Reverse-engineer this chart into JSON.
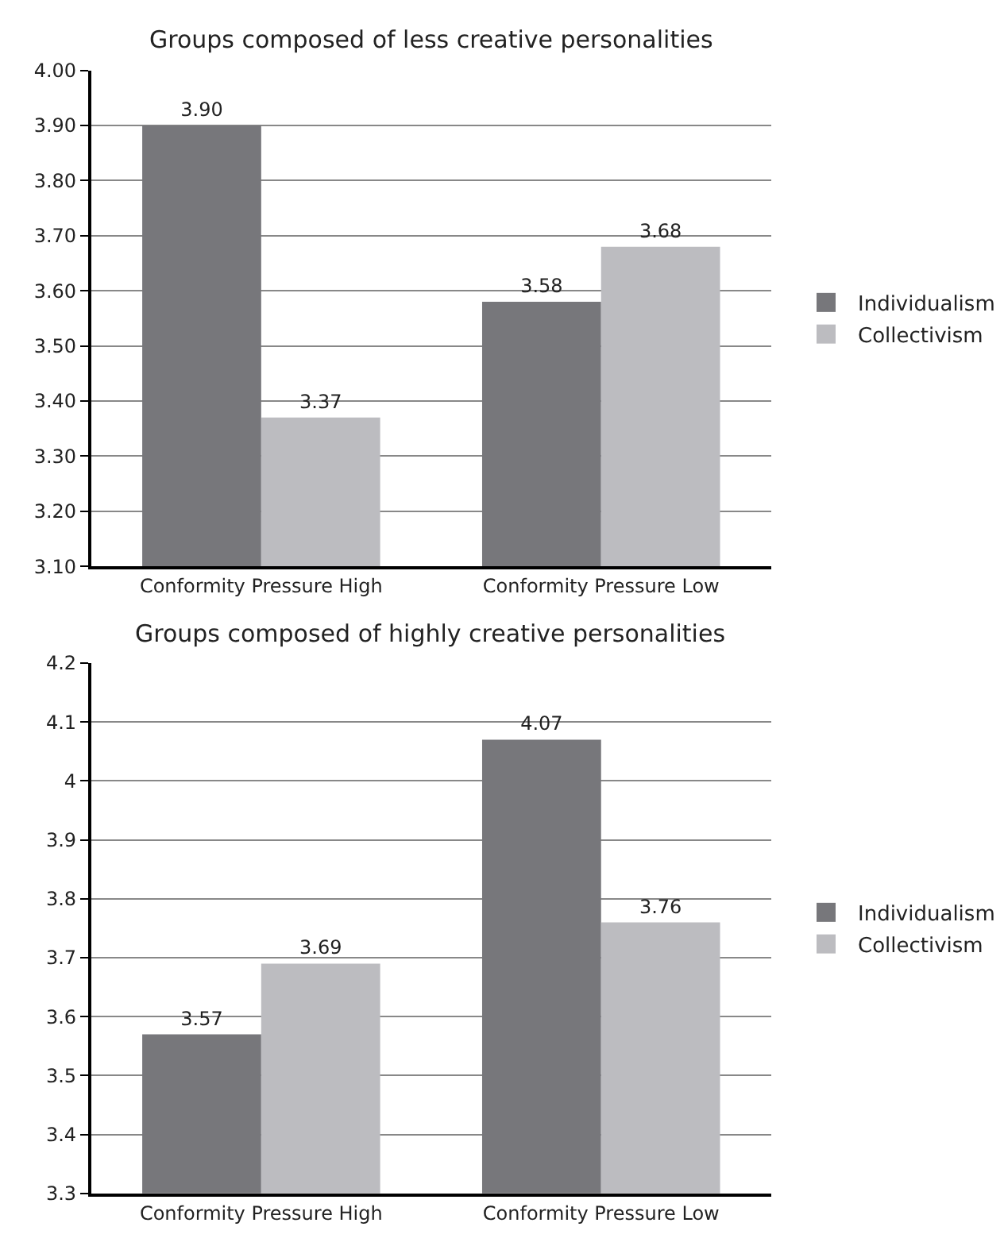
{
  "chart_data": [
    {
      "type": "bar",
      "title": "Groups composed of less creative personalities",
      "categories": [
        "Conformity Pressure High",
        "Conformity Pressure Low"
      ],
      "series": [
        {
          "name": "Individualism",
          "color": "#77777b",
          "values": [
            3.9,
            3.58
          ],
          "value_labels": [
            "3.90",
            "3.58"
          ]
        },
        {
          "name": "Collectivism",
          "color": "#bcbcc0",
          "values": [
            3.37,
            3.68
          ],
          "value_labels": [
            "3.37",
            "3.68"
          ]
        }
      ],
      "ylim": [
        3.1,
        4.0
      ],
      "yticks": [
        {
          "value": 3.1,
          "label": "3.10"
        },
        {
          "value": 3.2,
          "label": "3.20"
        },
        {
          "value": 3.3,
          "label": "3.30"
        },
        {
          "value": 3.4,
          "label": "3.40"
        },
        {
          "value": 3.5,
          "label": "3.50"
        },
        {
          "value": 3.6,
          "label": "3.60"
        },
        {
          "value": 3.7,
          "label": "3.70"
        },
        {
          "value": 3.8,
          "label": "3.80"
        },
        {
          "value": 3.9,
          "label": "3.90"
        },
        {
          "value": 4.0,
          "label": "4.00"
        }
      ],
      "grid": "y",
      "legend": "right"
    },
    {
      "type": "bar",
      "title": "Groups composed of highly creative personalities",
      "categories": [
        "Conformity Pressure High",
        "Conformity Pressure Low"
      ],
      "series": [
        {
          "name": "Individualism",
          "color": "#77777b",
          "values": [
            3.57,
            4.07
          ],
          "value_labels": [
            "3.57",
            "4.07"
          ]
        },
        {
          "name": "Collectivism",
          "color": "#bcbcc0",
          "values": [
            3.69,
            3.76
          ],
          "value_labels": [
            "3.69",
            "3.76"
          ]
        }
      ],
      "ylim": [
        3.3,
        4.2
      ],
      "yticks": [
        3.3,
        3.4,
        3.5,
        3.6,
        3.7,
        3.8,
        3.9,
        4,
        4.1,
        4.2
      ],
      "grid": "y",
      "legend": "right"
    }
  ]
}
